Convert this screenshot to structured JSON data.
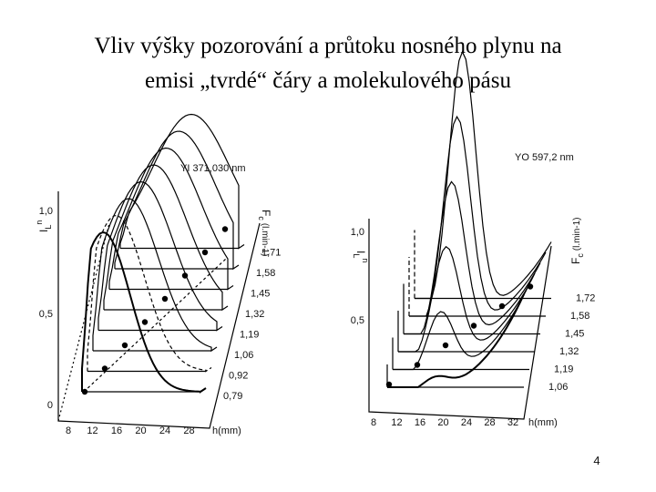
{
  "title": [
    "Vliv výšky pozorování a průtoku nosného plynu na",
    "emisi „tvrdé“ čáry a molekulového pásu"
  ],
  "figures": [
    {
      "line": "YI 371,030 nm",
      "y_axis_label": {
        "base": "I",
        "sub": "L",
        "sup": "n"
      },
      "y_ticks": [
        "1,0",
        "0,5",
        "0"
      ],
      "x_ticks": [
        "8",
        "12",
        "16",
        "20",
        "24",
        "28"
      ],
      "x_axis_label": "h(mm)",
      "flow_label": {
        "base": "F",
        "sub": "c",
        "unit": "(l.min-1)"
      },
      "flows": [
        "1,71",
        "1,58",
        "1,45",
        "1,32",
        "1,19",
        "1,06",
        "0,92",
        "0,79"
      ]
    },
    {
      "line": "YO 597,2 nm",
      "y_axis_label": {
        "base": "I",
        "sub": "L",
        "sup": "n"
      },
      "y_ticks": [
        "1,0",
        "0,5"
      ],
      "x_ticks": [
        "8",
        "12",
        "16",
        "20",
        "24",
        "28",
        "32"
      ],
      "x_axis_label": "h(mm)",
      "flow_label": {
        "base": "F",
        "sub": "c",
        "unit": "(l.min-1)"
      },
      "flows": [
        "1,72",
        "1,58",
        "1,45",
        "1,32",
        "1,19",
        "1,06"
      ]
    }
  ],
  "page_number": "4"
}
